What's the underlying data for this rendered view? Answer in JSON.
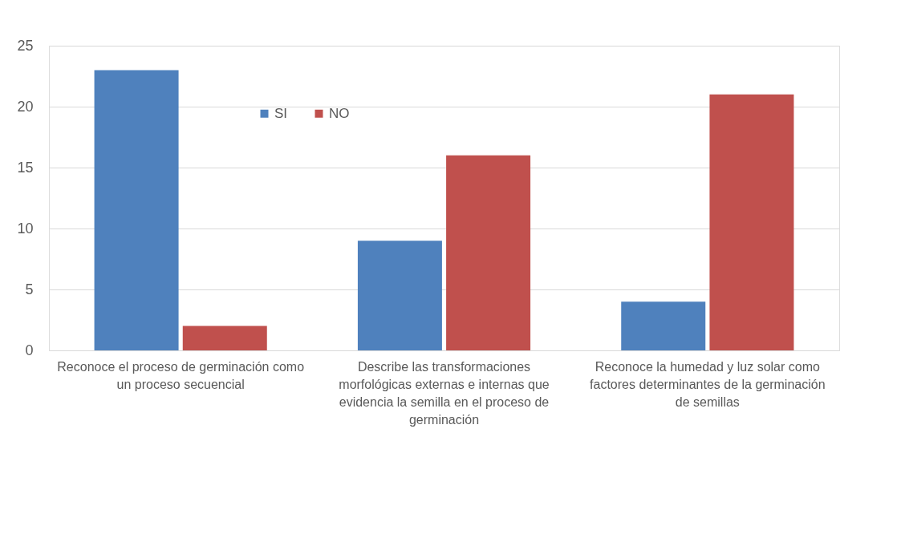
{
  "chart_data": {
    "type": "bar",
    "categories": [
      "Reconoce el proceso de germinación como un proceso secuencial",
      "Describe las transformaciones morfológicas externas e internas que evidencia la semilla en el proceso de germinación",
      "Reconoce la humedad y luz solar como factores determinantes de la germinación de semillas"
    ],
    "series": [
      {
        "name": "SI",
        "color": "#4f81bd",
        "values": [
          23,
          9,
          4
        ]
      },
      {
        "name": "NO",
        "color": "#c0504d",
        "values": [
          2,
          16,
          21
        ]
      }
    ],
    "ylim": [
      0,
      25
    ],
    "yticks": [
      0,
      5,
      10,
      15,
      20,
      25
    ],
    "grid": "y",
    "legend": "top"
  }
}
